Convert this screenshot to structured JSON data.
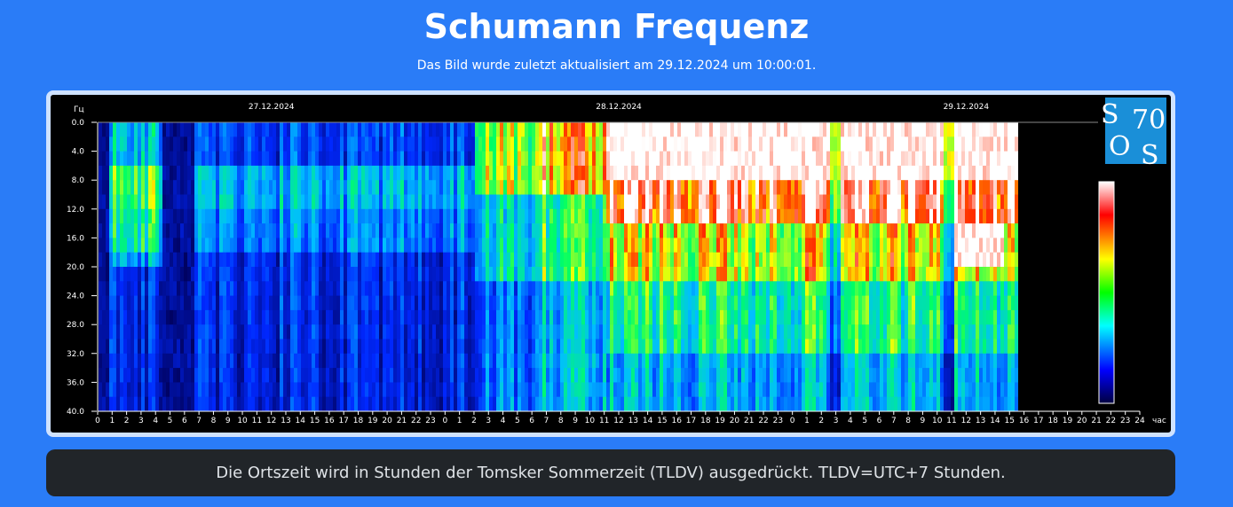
{
  "header": {
    "title": "Schumann Frequenz",
    "subtitle": "Das Bild wurde zuletzt aktualisiert am 29.12.2024 um 10:00:01."
  },
  "spectrogram": {
    "y_unit": "Гц",
    "y_ticks": [
      "0.0",
      "4.0",
      "8.0",
      "12.0",
      "16.0",
      "20.0",
      "24.0",
      "28.0",
      "32.0",
      "36.0",
      "40.0"
    ],
    "dates": [
      "27.12.2024",
      "28.12.2024",
      "29.12.2024"
    ],
    "x_ticks": [
      "0",
      "1",
      "2",
      "3",
      "4",
      "5",
      "6",
      "7",
      "8",
      "9",
      "10",
      "11",
      "12",
      "13",
      "14",
      "15",
      "16",
      "17",
      "18",
      "19",
      "20",
      "21",
      "22",
      "23",
      "0",
      "1",
      "2",
      "3",
      "4",
      "5",
      "6",
      "7",
      "8",
      "9",
      "10",
      "11",
      "12",
      "13",
      "14",
      "15",
      "16",
      "17",
      "18",
      "19",
      "20",
      "21",
      "22",
      "23",
      "0",
      "1",
      "2",
      "3",
      "4",
      "5",
      "6",
      "7",
      "8",
      "9",
      "10",
      "11",
      "12",
      "13",
      "14",
      "15",
      "16",
      "17",
      "18",
      "19",
      "20",
      "21",
      "22",
      "23",
      "24"
    ],
    "x_unit": "час",
    "logo": [
      "S",
      "70",
      "O",
      "S"
    ]
  },
  "footer": {
    "text": "Die Ortszeit wird in Stunden der Tomsker Sommerzeit (TLDV) ausgedrückt. TLDV=UTC+7 Stunden."
  }
}
